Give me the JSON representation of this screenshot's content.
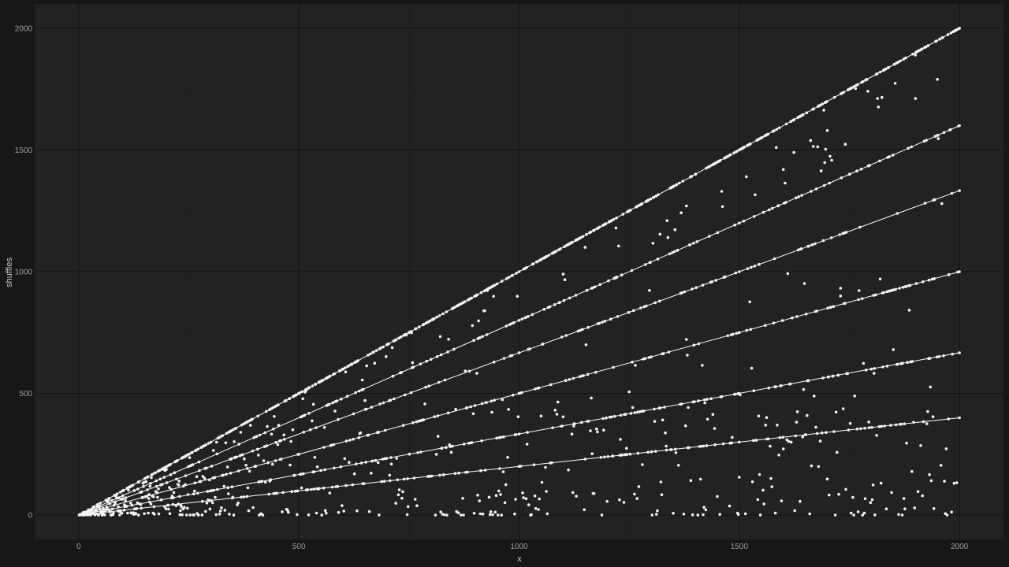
{
  "chart_data": {
    "type": "scatter",
    "title": "",
    "xlabel": "x",
    "ylabel": "shuffles",
    "xlim": [
      -100,
      2100
    ],
    "ylim": [
      -100,
      2100
    ],
    "x_ticks": [
      0,
      500,
      1000,
      1500,
      2000
    ],
    "y_ticks": [
      0,
      500,
      1000,
      1500,
      2000
    ],
    "x_minor_ticks": [
      250,
      750,
      1250,
      1750
    ],
    "y_minor_ticks": [
      250,
      750,
      1250,
      1750
    ],
    "grid": true,
    "legend": "none",
    "reference_lines": [
      {
        "slope": 1.0,
        "x": [
          0,
          2000
        ],
        "y": [
          0,
          2000
        ]
      },
      {
        "slope": 0.8,
        "x": [
          0,
          2000
        ],
        "y": [
          0,
          1600
        ]
      },
      {
        "slope": 0.6667,
        "x": [
          0,
          2000
        ],
        "y": [
          0,
          1333
        ]
      },
      {
        "slope": 0.5,
        "x": [
          0,
          2000
        ],
        "y": [
          0,
          1000
        ]
      },
      {
        "slope": 0.3333,
        "x": [
          0,
          2000
        ],
        "y": [
          0,
          667
        ]
      },
      {
        "slope": 0.2,
        "x": [
          0,
          2000
        ],
        "y": [
          0,
          400
        ]
      }
    ],
    "point_description": "points x = 1..2000; many lie on y = x, y = 0.8x, y = 2x/3, y = x/2, y = x/3, y = 0.2x, the rest scattered below y = x with density concentrated at low y",
    "samples": [
      {
        "x": 100,
        "y": 100
      },
      {
        "x": 250,
        "y": 250
      },
      {
        "x": 500,
        "y": 500
      },
      {
        "x": 750,
        "y": 750
      },
      {
        "x": 1000,
        "y": 1000
      },
      {
        "x": 1250,
        "y": 1250
      },
      {
        "x": 1500,
        "y": 1500
      },
      {
        "x": 1750,
        "y": 1750
      },
      {
        "x": 2000,
        "y": 2000
      },
      {
        "x": 1000,
        "y": 800
      },
      {
        "x": 1500,
        "y": 1200
      },
      {
        "x": 2000,
        "y": 1600
      },
      {
        "x": 1000,
        "y": 667
      },
      {
        "x": 1500,
        "y": 1000
      },
      {
        "x": 2000,
        "y": 1333
      },
      {
        "x": 1000,
        "y": 500
      },
      {
        "x": 1500,
        "y": 750
      },
      {
        "x": 2000,
        "y": 1000
      },
      {
        "x": 1000,
        "y": 333
      },
      {
        "x": 1500,
        "y": 500
      },
      {
        "x": 2000,
        "y": 667
      },
      {
        "x": 1000,
        "y": 200
      },
      {
        "x": 1500,
        "y": 300
      },
      {
        "x": 2000,
        "y": 400
      },
      {
        "x": 1100,
        "y": 990
      },
      {
        "x": 1150,
        "y": 1100
      },
      {
        "x": 1220,
        "y": 1180
      },
      {
        "x": 1900,
        "y": 1890
      },
      {
        "x": 1950,
        "y": 1790
      },
      {
        "x": 1820,
        "y": 970
      },
      {
        "x": 1850,
        "y": 680
      },
      {
        "x": 1380,
        "y": 1270
      },
      {
        "x": 1460,
        "y": 1330
      },
      {
        "x": 1600,
        "y": 1420
      },
      {
        "x": 1700,
        "y": 1580
      },
      {
        "x": 1730,
        "y": 900
      }
    ],
    "colors": {
      "background": "#171717",
      "panel": "#222222",
      "grid_major": "#141414",
      "grid_minor": "#1c1c1c",
      "points": "#f2f2f2",
      "lines": "#ffffff"
    }
  }
}
